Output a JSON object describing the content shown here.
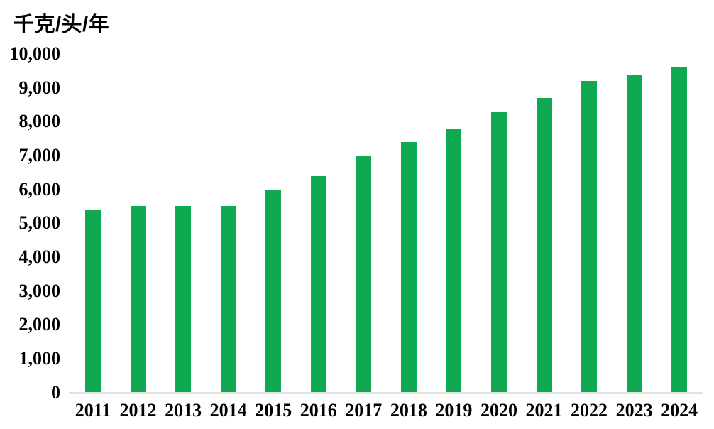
{
  "chart_data": {
    "type": "bar",
    "title": "千克/头/年",
    "ylabel": "千克/头/年",
    "xlabel": "",
    "categories": [
      "2011",
      "2012",
      "2013",
      "2014",
      "2015",
      "2016",
      "2017",
      "2018",
      "2019",
      "2020",
      "2021",
      "2022",
      "2023",
      "2024"
    ],
    "values": [
      5400,
      5500,
      5500,
      5500,
      6000,
      6400,
      7000,
      7400,
      7800,
      8300,
      8700,
      9200,
      9400,
      9600
    ],
    "ylim": [
      0,
      10000
    ],
    "ytick_interval": 1000,
    "y_tick_labels_top_to_bottom": [
      "10,000",
      "9,000",
      "8,000",
      "7,000",
      "6,000",
      "5,000",
      "4,000",
      "3,000",
      "2,000",
      "1,000",
      "0"
    ],
    "grid": false,
    "legend_position": "none"
  },
  "colors": {
    "bar": "#0ea951",
    "axis_line": "#dde4e0",
    "text": "#000000",
    "background": "#ffffff"
  }
}
